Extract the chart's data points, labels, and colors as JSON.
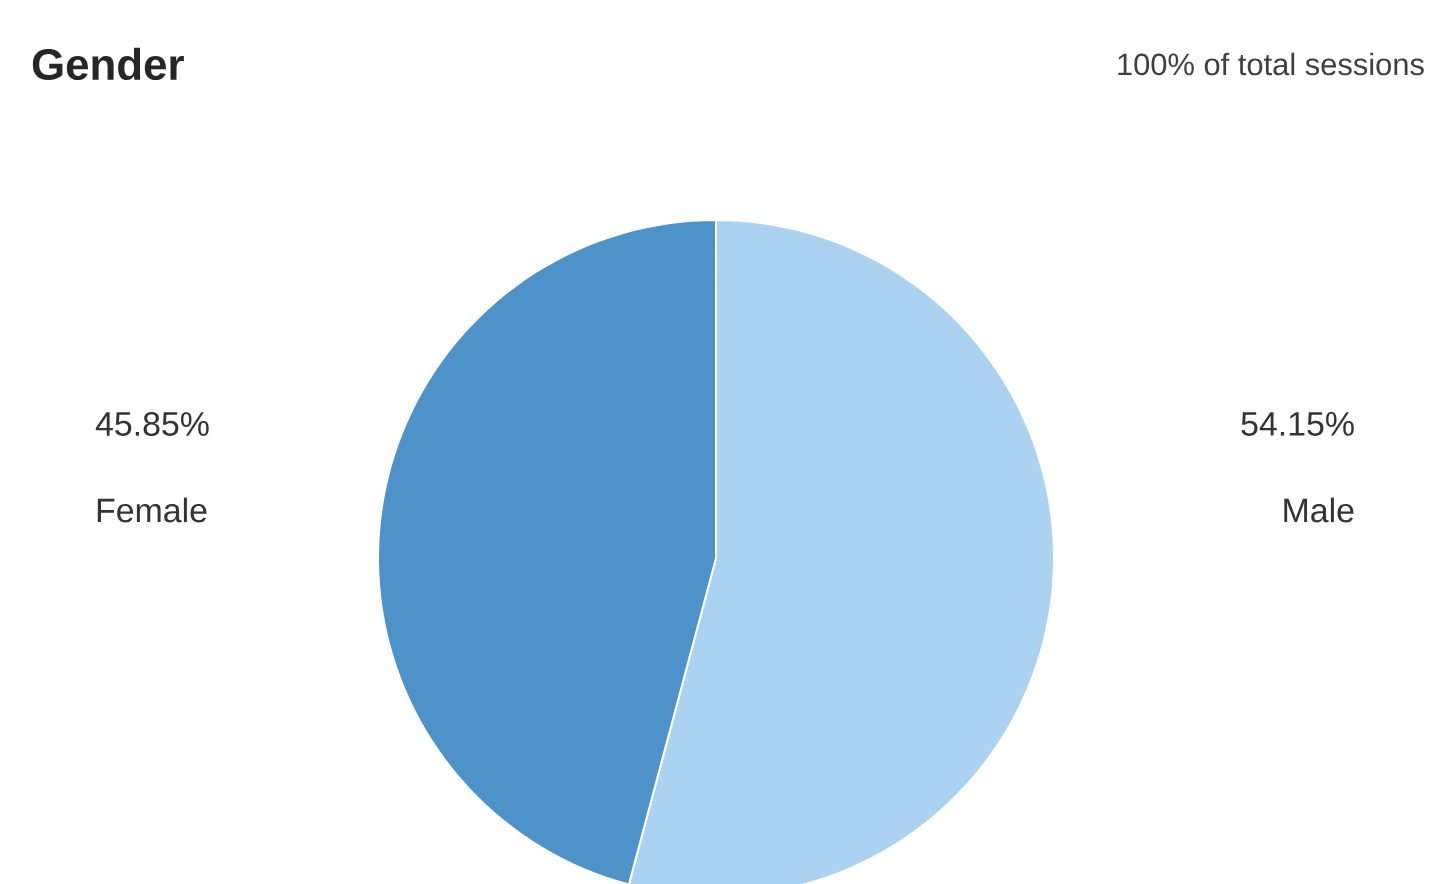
{
  "chart_data": {
    "type": "pie",
    "title": "Gender",
    "subtitle": "100% of total sessions",
    "categories": [
      "Male",
      "Female"
    ],
    "values": [
      54.15,
      45.85
    ],
    "colors": [
      "#abd3f1",
      "#4d93ca"
    ],
    "value_labels": [
      "54.15%",
      "45.85%"
    ]
  }
}
